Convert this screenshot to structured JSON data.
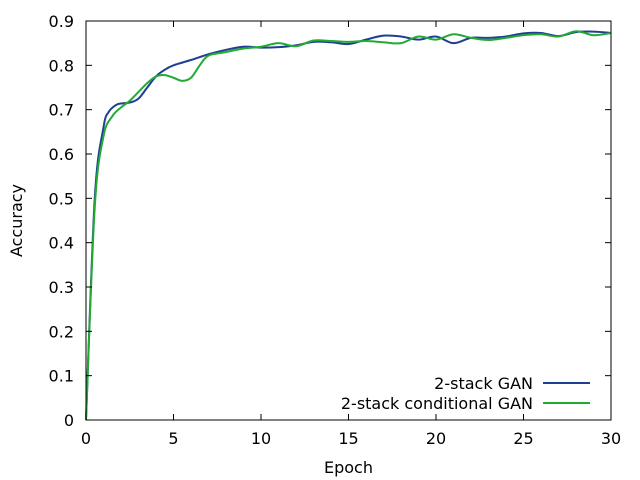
{
  "chart_data": {
    "type": "line",
    "title": "",
    "xlabel": "Epoch",
    "ylabel": "Accuracy",
    "xlim": [
      0,
      30
    ],
    "ylim": [
      0,
      0.9
    ],
    "x_ticks": [
      "0",
      "5",
      "10",
      "15",
      "20",
      "25",
      "30"
    ],
    "y_ticks": [
      "0",
      "0.1",
      "0.2",
      "0.3",
      "0.4",
      "0.5",
      "0.6",
      "0.7",
      "0.8",
      "0.9"
    ],
    "grid": false,
    "legend_position": "bottom-right",
    "series": [
      {
        "name": "2-stack GAN",
        "color": "#1f3f94",
        "x": [
          0,
          0.5,
          1,
          1.3,
          1.7,
          2,
          2.5,
          3,
          3.5,
          4,
          4.5,
          5,
          6,
          7,
          8,
          9,
          10,
          11,
          12,
          13,
          14,
          15,
          16,
          17,
          18,
          19,
          20,
          21,
          22,
          23,
          24,
          25,
          26,
          27,
          28,
          29,
          30
        ],
        "y": [
          0,
          0.5,
          0.66,
          0.695,
          0.71,
          0.714,
          0.716,
          0.725,
          0.75,
          0.775,
          0.79,
          0.8,
          0.812,
          0.825,
          0.835,
          0.842,
          0.84,
          0.841,
          0.845,
          0.853,
          0.852,
          0.848,
          0.858,
          0.867,
          0.865,
          0.858,
          0.865,
          0.85,
          0.862,
          0.862,
          0.865,
          0.872,
          0.873,
          0.866,
          0.875,
          0.876,
          0.873
        ]
      },
      {
        "name": "2-stack conditional GAN",
        "color": "#22aa33",
        "x": [
          0,
          0.5,
          1,
          1.5,
          2,
          2.5,
          3,
          3.5,
          4,
          4.5,
          5,
          5.5,
          6,
          6.5,
          7,
          8,
          9,
          10,
          11,
          12,
          13,
          14,
          15,
          16,
          17,
          18,
          19,
          20,
          21,
          22,
          23,
          24,
          25,
          26,
          27,
          28,
          29,
          30
        ],
        "y": [
          0,
          0.48,
          0.64,
          0.685,
          0.705,
          0.72,
          0.74,
          0.76,
          0.775,
          0.778,
          0.772,
          0.765,
          0.772,
          0.8,
          0.822,
          0.83,
          0.838,
          0.842,
          0.85,
          0.843,
          0.856,
          0.855,
          0.853,
          0.855,
          0.852,
          0.85,
          0.865,
          0.858,
          0.87,
          0.862,
          0.857,
          0.862,
          0.868,
          0.87,
          0.865,
          0.877,
          0.868,
          0.873
        ]
      }
    ]
  }
}
